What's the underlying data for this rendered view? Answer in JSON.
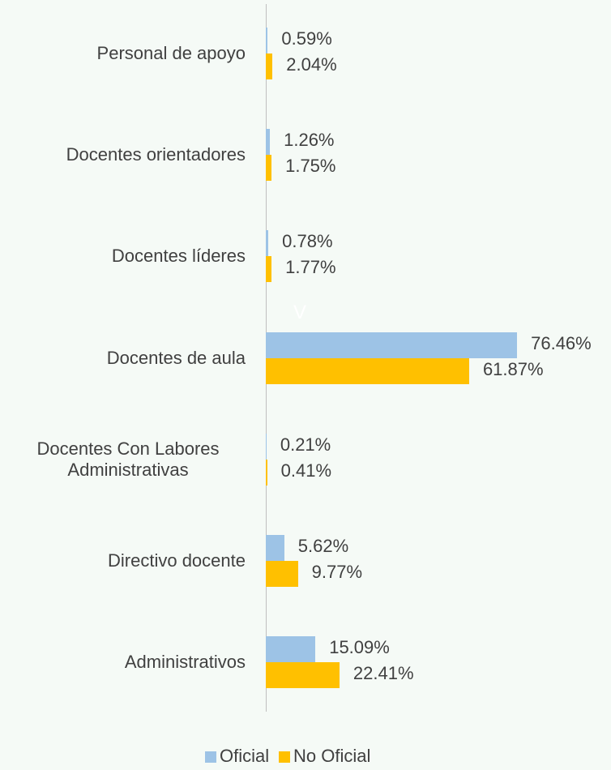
{
  "chart_data": {
    "type": "bar",
    "orientation": "horizontal",
    "categories": [
      "Personal de apoyo",
      "Docentes orientadores",
      "Docentes líderes",
      "Docentes de aula",
      "Docentes Con Labores Administrativas",
      "Directivo docente",
      "Administrativos"
    ],
    "series": [
      {
        "name": "Oficial",
        "color": "#9dc3e6",
        "values": [
          0.59,
          1.26,
          0.78,
          76.46,
          0.21,
          5.62,
          15.09
        ],
        "value_labels": [
          "0.59%",
          "1.26%",
          "0.78%",
          "76.46%",
          "0.21%",
          "5.62%",
          "15.09%"
        ]
      },
      {
        "name": "No Oficial",
        "color": "#ffc000",
        "values": [
          2.04,
          1.75,
          1.77,
          61.87,
          0.41,
          9.77,
          22.41
        ],
        "value_labels": [
          "2.04%",
          "1.75%",
          "1.77%",
          "61.87%",
          "0.41%",
          "9.77%",
          "22.41%"
        ]
      }
    ],
    "annotation": "V",
    "xlim": [
      0,
      100
    ]
  }
}
